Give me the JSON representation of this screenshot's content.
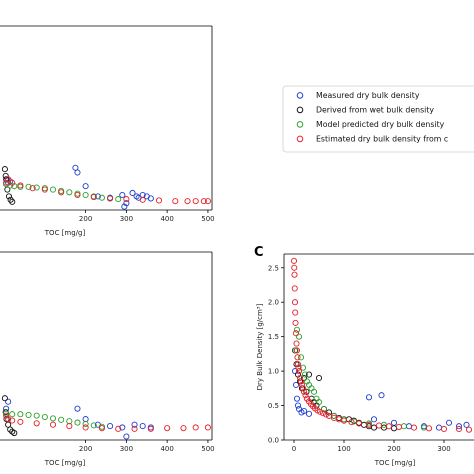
{
  "chart_data": [
    {
      "panel": "top-left",
      "type": "scatter",
      "xlabel": "TOC [mg/g]",
      "ylabel": "",
      "xlim": [
        -10,
        510
      ],
      "ylim": [
        0,
        2.7
      ],
      "xticks": [
        "200",
        "300",
        "400",
        "500"
      ],
      "xtick_values": [
        200,
        300,
        400,
        500
      ],
      "series": [
        {
          "name": "Measured dry bulk density",
          "color": "#1f3fd1",
          "x": [
            5,
            10,
            15,
            175,
            180,
            200,
            230,
            260,
            290,
            300,
            315,
            325,
            330,
            340,
            350,
            360,
            295
          ],
          "y": [
            0.45,
            0.4,
            0.42,
            0.62,
            0.55,
            0.35,
            0.2,
            0.18,
            0.22,
            0.1,
            0.25,
            0.2,
            0.18,
            0.22,
            0.2,
            0.17,
            0.05
          ]
        },
        {
          "name": "Derived from wet bulk density",
          "color": "#111111",
          "x": [
            2,
            4,
            6,
            8,
            12,
            16,
            20
          ],
          "y": [
            0.6,
            0.5,
            0.45,
            0.3,
            0.2,
            0.15,
            0.12
          ]
        },
        {
          "name": "Model predicted dry bulk density",
          "color": "#2aa02a",
          "x": [
            5,
            15,
            25,
            40,
            60,
            80,
            100,
            120,
            140,
            160,
            180,
            200,
            220,
            240,
            260,
            280
          ],
          "y": [
            0.38,
            0.36,
            0.35,
            0.34,
            0.34,
            0.33,
            0.32,
            0.3,
            0.28,
            0.26,
            0.24,
            0.22,
            0.2,
            0.18,
            0.17,
            0.16
          ]
        },
        {
          "name": "Estimated dry bulk density from c",
          "color": "#e8202a",
          "x": [
            5,
            10,
            20,
            40,
            70,
            100,
            140,
            180,
            220,
            260,
            300,
            340,
            380,
            420,
            450,
            470,
            490,
            500
          ],
          "y": [
            0.4,
            0.45,
            0.4,
            0.36,
            0.32,
            0.3,
            0.26,
            0.22,
            0.19,
            0.17,
            0.16,
            0.15,
            0.14,
            0.13,
            0.13,
            0.13,
            0.13,
            0.13
          ]
        }
      ]
    },
    {
      "panel": "bottom-left",
      "type": "scatter",
      "xlabel": "TOC [mg/g]",
      "ylabel": "",
      "xlim": [
        -10,
        510
      ],
      "ylim": [
        0,
        2.7
      ],
      "xticks": [
        "200",
        "300",
        "400",
        "500"
      ],
      "xtick_values": [
        200,
        300,
        400,
        500
      ],
      "series": [
        {
          "name": "Measured dry bulk density",
          "color": "#1f3fd1",
          "x": [
            5,
            10,
            180,
            200,
            230,
            260,
            290,
            300,
            320,
            340,
            360
          ],
          "y": [
            0.45,
            0.55,
            0.45,
            0.3,
            0.22,
            0.2,
            0.18,
            0.05,
            0.22,
            0.2,
            0.18
          ]
        },
        {
          "name": "Derived from wet bulk density",
          "color": "#111111",
          "x": [
            2,
            4,
            6,
            10,
            15,
            20,
            25
          ],
          "y": [
            0.6,
            0.4,
            0.3,
            0.22,
            0.15,
            0.12,
            0.1
          ]
        },
        {
          "name": "Model predicted dry bulk density",
          "color": "#2aa02a",
          "x": [
            5,
            20,
            40,
            60,
            80,
            100,
            120,
            140,
            160,
            180,
            200,
            220,
            240
          ],
          "y": [
            0.38,
            0.37,
            0.37,
            0.36,
            0.35,
            0.33,
            0.31,
            0.29,
            0.27,
            0.25,
            0.23,
            0.21,
            0.19
          ]
        },
        {
          "name": "Estimated dry bulk density from c",
          "color": "#e8202a",
          "x": [
            5,
            10,
            20,
            40,
            80,
            120,
            160,
            200,
            240,
            280,
            320,
            360,
            400,
            440,
            470,
            500
          ],
          "y": [
            0.35,
            0.3,
            0.28,
            0.26,
            0.24,
            0.22,
            0.2,
            0.18,
            0.17,
            0.16,
            0.16,
            0.16,
            0.17,
            0.17,
            0.18,
            0.18
          ]
        }
      ]
    },
    {
      "panel": "C",
      "type": "scatter",
      "xlabel": "TOC [mg/g]",
      "ylabel": "Dry Bulk Density [g/cm³]",
      "xlim": [
        -20,
        360
      ],
      "ylim": [
        0,
        2.7
      ],
      "xticks": [
        "0",
        "100",
        "200",
        "300"
      ],
      "xtick_values": [
        0,
        100,
        200,
        300
      ],
      "yticks": [
        "0.0",
        "0.5",
        "1.0",
        "1.5",
        "2.0",
        "2.5"
      ],
      "ytick_values": [
        0.0,
        0.5,
        1.0,
        1.5,
        2.0,
        2.5
      ],
      "series": [
        {
          "name": "Measured dry bulk density",
          "color": "#1f3fd1",
          "x": [
            2,
            4,
            6,
            8,
            10,
            15,
            20,
            30,
            150,
            160,
            175,
            200,
            230,
            260,
            290,
            310,
            330,
            345
          ],
          "y": [
            1.0,
            0.8,
            0.6,
            0.5,
            0.45,
            0.4,
            0.42,
            0.38,
            0.62,
            0.3,
            0.65,
            0.25,
            0.2,
            0.2,
            0.18,
            0.25,
            0.2,
            0.22
          ]
        },
        {
          "name": "Derived from wet bulk density",
          "color": "#111111",
          "x": [
            2,
            5,
            8,
            12,
            16,
            20,
            25,
            30,
            35,
            40,
            45,
            50,
            60,
            70,
            80,
            90,
            100,
            110,
            120,
            130,
            140,
            150,
            160,
            180,
            200
          ],
          "y": [
            1.3,
            1.1,
            0.95,
            0.85,
            0.75,
            0.9,
            0.7,
            0.95,
            0.6,
            0.55,
            0.5,
            0.9,
            0.45,
            0.4,
            0.35,
            0.32,
            0.3,
            0.3,
            0.28,
            0.25,
            0.22,
            0.2,
            0.18,
            0.18,
            0.17
          ]
        },
        {
          "name": "Model predicted dry bulk density",
          "color": "#2aa02a",
          "x": [
            3,
            6,
            10,
            14,
            18,
            22,
            26,
            30,
            35,
            40,
            45,
            50,
            60,
            80,
            100,
            120,
            150,
            180,
            220,
            260
          ],
          "y": [
            1.3,
            1.6,
            1.5,
            1.2,
            1.05,
            0.95,
            0.85,
            0.8,
            0.75,
            0.7,
            0.6,
            0.55,
            0.45,
            0.35,
            0.3,
            0.27,
            0.24,
            0.22,
            0.2,
            0.18
          ]
        },
        {
          "name": "Estimated dry bulk density from c",
          "color": "#e8202a",
          "x": [
            0,
            0.5,
            1,
            1.5,
            2,
            2.5,
            3,
            4,
            5,
            6,
            7,
            8,
            9,
            10,
            12,
            14,
            16,
            18,
            20,
            23,
            26,
            30,
            34,
            38,
            42,
            47,
            52,
            58,
            64,
            70,
            80,
            90,
            100,
            115,
            130,
            150,
            170,
            190,
            210,
            240,
            270,
            300,
            330,
            350
          ],
          "y": [
            2.6,
            2.5,
            2.4,
            2.2,
            2.0,
            1.85,
            1.7,
            1.55,
            1.4,
            1.3,
            1.2,
            1.1,
            1.05,
            1.0,
            0.9,
            0.85,
            0.8,
            0.75,
            0.7,
            0.65,
            0.6,
            0.56,
            0.52,
            0.49,
            0.46,
            0.43,
            0.41,
            0.39,
            0.37,
            0.35,
            0.32,
            0.3,
            0.28,
            0.26,
            0.24,
            0.22,
            0.21,
            0.2,
            0.19,
            0.18,
            0.17,
            0.16,
            0.16,
            0.15
          ]
        }
      ]
    }
  ],
  "legend": {
    "entries": [
      {
        "label": "Measured dry bulk density",
        "color": "#1f3fd1"
      },
      {
        "label": "Derived from wet bulk density",
        "color": "#111111"
      },
      {
        "label": "Model predicted dry bulk density",
        "color": "#2aa02a"
      },
      {
        "label": "Estimated dry bulk density from c",
        "color": "#e8202a"
      }
    ]
  },
  "panel_letter": "C"
}
